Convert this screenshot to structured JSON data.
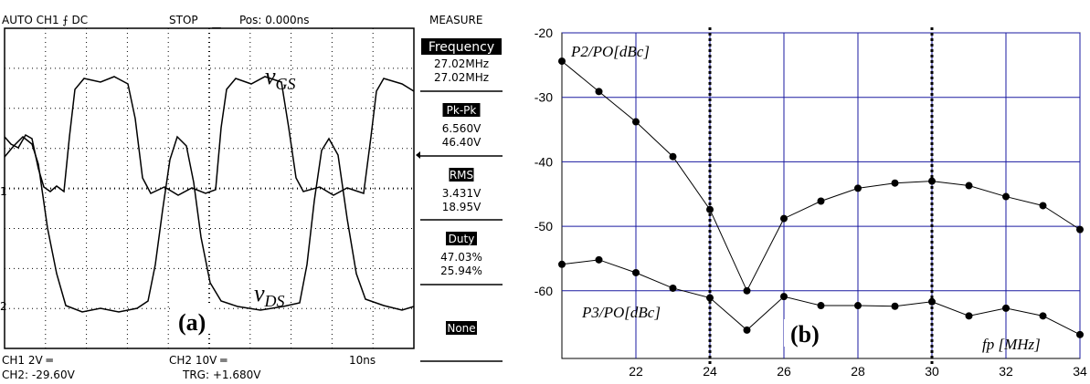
{
  "scope": {
    "header": {
      "mode": "AUTO CH1 ⨍ DC",
      "state": "STOP",
      "position": "Pos: 0.000ns"
    },
    "measure": {
      "title": "MEASURE",
      "items": [
        {
          "name": "Frequency",
          "readings": [
            "27.02MHz",
            "27.02MHz"
          ]
        },
        {
          "name": "Pk-Pk",
          "readings": [
            "6.560V",
            "46.40V"
          ]
        },
        {
          "name": "RMS",
          "readings": [
            "3.431V",
            "18.95V"
          ]
        },
        {
          "name": "Duty",
          "readings": [
            "47.03%",
            "25.94%"
          ]
        },
        {
          "name": "None",
          "readings": []
        }
      ]
    },
    "footer": {
      "ch1": "CH1 2V ═",
      "ch2": "CH2 10V ═",
      "timebase": "10ns",
      "ch2_offset": "CH2: -29.60V",
      "trigger": "TRG: +1.680V"
    },
    "markers": [
      "1",
      "2"
    ],
    "labels": {
      "vgs": {
        "symbol": "v",
        "subscript": "GS"
      },
      "vds": {
        "symbol": "v",
        "subscript": "DS"
      },
      "panel": "(a)"
    }
  },
  "chart_data": {
    "type": "line",
    "x_label": "fp [MHz]",
    "annotation": "(b)",
    "x": [
      20,
      21,
      22,
      23,
      24,
      25,
      26,
      27,
      28,
      29,
      30,
      31,
      32,
      33,
      34
    ],
    "series": [
      {
        "name": "P2/PO[dBc]",
        "color": "#000000",
        "values": [
          -24.4,
          -29.1,
          -33.8,
          -39.2,
          -47.4,
          -60,
          -48.8,
          -46.1,
          -44.1,
          -43.3,
          -43,
          -43.7,
          -45.4,
          -46.8,
          -50.5
        ]
      },
      {
        "name": "P3/PO[dBc]",
        "color": "#000000",
        "values": [
          -55.9,
          -55.2,
          -57.2,
          -59.6,
          -61.1,
          -66.1,
          -60.9,
          -62.3,
          -62.3,
          -62.4,
          -61.7,
          -63.9,
          -62.7,
          -63.9,
          -66.8
        ]
      }
    ],
    "xlim": [
      20,
      34
    ],
    "ylim": [
      -70.5,
      -20
    ],
    "xticks": [
      22,
      24,
      26,
      28,
      30,
      32,
      34
    ],
    "yticks": [
      -20,
      -30,
      -40,
      -50,
      -60
    ],
    "grid": true,
    "grid_color": "#1a1aa0",
    "vlines": [
      24,
      30
    ]
  }
}
